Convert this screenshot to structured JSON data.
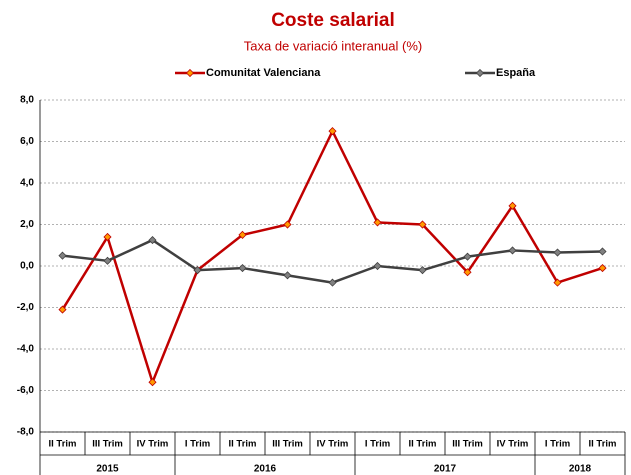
{
  "chart_data": {
    "type": "line",
    "title": "Coste salarial",
    "subtitle": "Taxa de variació interanual (%)",
    "categories": [
      "II Trim",
      "III Trim",
      "IV Trim",
      "I Trim",
      "II Trim",
      "III Trim",
      "IV Trim",
      "I Trim",
      "II Trim",
      "III Trim",
      "IV Trim",
      "I Trim",
      "II Trim"
    ],
    "category_years": [
      "2015",
      "2015",
      "2015",
      "2016",
      "2016",
      "2016",
      "2016",
      "2017",
      "2017",
      "2017",
      "2017",
      "2018",
      "2018"
    ],
    "series": [
      {
        "name": "Comunitat Valenciana",
        "color": "#c00000",
        "marker_color": "#ff9900",
        "values": [
          -2.1,
          1.4,
          -5.6,
          -0.2,
          1.5,
          2.0,
          6.5,
          2.1,
          2.0,
          -0.3,
          2.9,
          -0.8,
          -0.1
        ]
      },
      {
        "name": "España",
        "color": "#404040",
        "marker_color": "#808080",
        "values": [
          0.5,
          0.25,
          1.25,
          -0.2,
          -0.1,
          -0.45,
          -0.8,
          0.0,
          -0.2,
          0.45,
          0.75,
          0.65,
          0.7
        ]
      }
    ],
    "ylim": [
      -8,
      8
    ],
    "yticks": [
      {
        "value": -8,
        "label": "-8,0"
      },
      {
        "value": -6,
        "label": "-6,0"
      },
      {
        "value": -4,
        "label": "-4,0"
      },
      {
        "value": -2,
        "label": "-2,0"
      },
      {
        "value": 0,
        "label": "0,0"
      },
      {
        "value": 2,
        "label": "2,0"
      },
      {
        "value": 4,
        "label": "4,0"
      },
      {
        "value": 6,
        "label": "6,0"
      },
      {
        "value": 8,
        "label": "8,0"
      }
    ],
    "grid": true,
    "legend": "top"
  }
}
